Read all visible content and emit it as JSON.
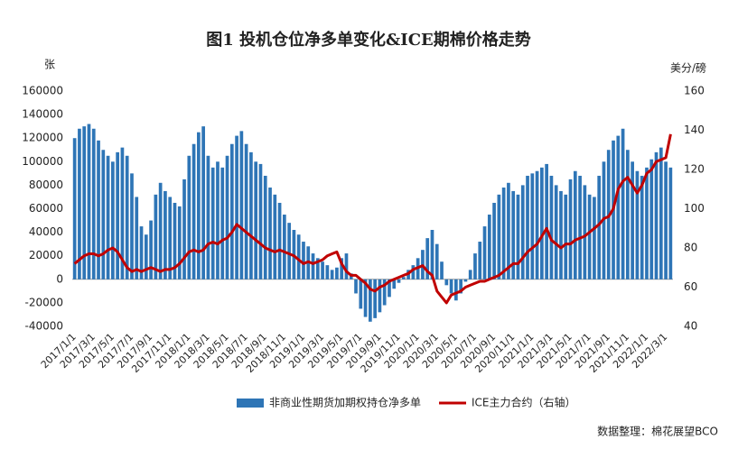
{
  "chart_data": {
    "type": "bar_line",
    "title": "图1  投机仓位净多单变化&ICE期棉价格走势",
    "y_axis_label": "张",
    "y2_axis_label": "美分/磅",
    "source": "数据整理：棉花展望BCO",
    "categories": [
      "2017/1/1",
      null,
      null,
      null,
      "2017/3/1",
      null,
      null,
      null,
      "2017/5/1",
      null,
      null,
      null,
      "2017/7/1",
      null,
      null,
      null,
      "2017/9/1",
      null,
      null,
      null,
      "2017/11/1",
      null,
      null,
      null,
      "2018/1/1",
      null,
      null,
      null,
      "2018/3/1",
      null,
      null,
      null,
      "2018/5/1",
      null,
      null,
      null,
      "2018/7/1",
      null,
      null,
      null,
      "2018/9/1",
      null,
      null,
      null,
      "2018/11/1",
      null,
      null,
      null,
      "2019/1/1",
      null,
      null,
      null,
      "2019/3/1",
      null,
      null,
      null,
      "2019/5/1",
      null,
      null,
      null,
      "2019/7/1",
      null,
      null,
      null,
      "2019/9/1",
      null,
      null,
      null,
      "2019/11/1",
      null,
      null,
      null,
      "2020/1/1",
      null,
      null,
      null,
      "2020/3/1",
      null,
      null,
      null,
      "2020/5/1",
      null,
      null,
      null,
      "2020/7/1",
      null,
      null,
      null,
      "2020/9/1",
      null,
      null,
      null,
      "2020/11/1",
      null,
      null,
      null,
      "2021/1/1",
      null,
      null,
      null,
      "2021/3/1",
      null,
      null,
      null,
      "2021/5/1",
      null,
      null,
      null,
      "2021/7/1",
      null,
      null,
      null,
      "2021/9/1",
      null,
      null,
      null,
      "2021/11/1",
      null,
      null,
      null,
      "2022/1/1",
      null,
      null,
      null,
      "2022/3/1",
      null
    ],
    "series": [
      {
        "name": "非商业性期货加期权持仓净多单",
        "color": "#2e75b6",
        "kind": "bar",
        "values": [
          120000,
          128000,
          130000,
          132000,
          128000,
          118000,
          110000,
          105000,
          100000,
          108000,
          112000,
          105000,
          90000,
          70000,
          45000,
          38000,
          50000,
          72000,
          82000,
          75000,
          70000,
          65000,
          62000,
          85000,
          105000,
          115000,
          125000,
          130000,
          105000,
          95000,
          100000,
          95000,
          105000,
          115000,
          122000,
          126000,
          115000,
          108000,
          100000,
          98000,
          88000,
          78000,
          72000,
          65000,
          55000,
          48000,
          42000,
          38000,
          32000,
          28000,
          22000,
          18000,
          15000,
          12000,
          8000,
          10000,
          18000,
          22000,
          5000,
          -12000,
          -25000,
          -32000,
          -36000,
          -33000,
          -28000,
          -22000,
          -15000,
          -8000,
          -3000,
          2000,
          8000,
          12000,
          18000,
          25000,
          35000,
          42000,
          30000,
          15000,
          -5000,
          -12000,
          -18000,
          -12000,
          -2000,
          8000,
          22000,
          32000,
          45000,
          55000,
          65000,
          72000,
          78000,
          82000,
          75000,
          72000,
          80000,
          88000,
          90000,
          92000,
          95000,
          98000,
          88000,
          80000,
          75000,
          72000,
          85000,
          92000,
          88000,
          80000,
          72000,
          70000,
          88000,
          100000,
          110000,
          118000,
          122000,
          128000,
          110000,
          100000,
          92000,
          88000,
          95000,
          102000,
          108000,
          112000,
          100000,
          95000
        ]
      },
      {
        "name": "ICE主力合约（右轴）",
        "color": "#c00000",
        "kind": "line",
        "axis": "y2",
        "values": [
          72,
          74,
          76,
          77,
          77,
          76,
          77,
          79,
          80,
          78,
          74,
          70,
          68,
          69,
          68,
          69,
          70,
          69,
          68,
          69,
          69,
          70,
          72,
          75,
          78,
          79,
          78,
          79,
          82,
          83,
          82,
          84,
          85,
          88,
          92,
          90,
          88,
          86,
          84,
          82,
          80,
          79,
          78,
          79,
          78,
          77,
          76,
          74,
          72,
          73,
          72,
          73,
          74,
          76,
          77,
          78,
          72,
          68,
          66,
          66,
          64,
          62,
          59,
          58,
          60,
          61,
          63,
          64,
          65,
          66,
          67,
          69,
          70,
          71,
          68,
          66,
          58,
          55,
          52,
          56,
          57,
          58,
          60,
          61,
          62,
          63,
          63,
          64,
          65,
          66,
          68,
          70,
          72,
          72,
          75,
          78,
          80,
          82,
          86,
          90,
          84,
          82,
          80,
          82,
          82,
          84,
          85,
          86,
          88,
          90,
          92,
          95,
          96,
          100,
          110,
          114,
          116,
          112,
          108,
          112,
          118,
          120,
          124,
          125,
          126,
          138
        ]
      }
    ],
    "ylim": [
      -40000,
      160000
    ],
    "yticks": [
      -40000,
      -20000,
      0,
      20000,
      40000,
      60000,
      80000,
      100000,
      120000,
      140000,
      160000
    ],
    "y2lim": [
      40,
      160
    ],
    "y2ticks": [
      40,
      60,
      80,
      100,
      120,
      140,
      160
    ],
    "legend": "bottom"
  }
}
